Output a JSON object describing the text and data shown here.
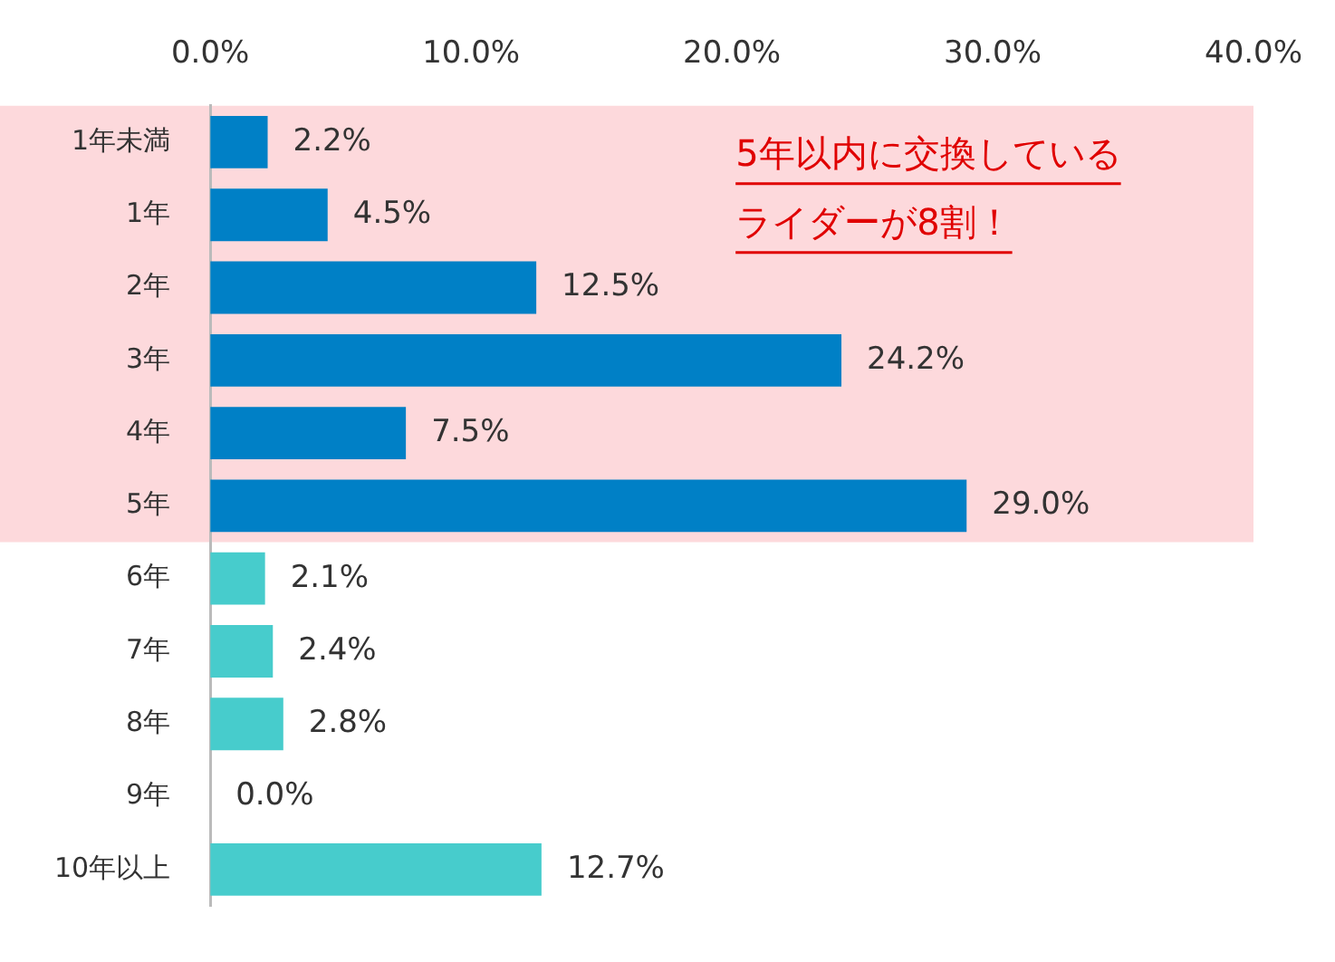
{
  "chart_data": {
    "type": "bar",
    "orientation": "horizontal",
    "categories": [
      "1年未満",
      "1年",
      "2年",
      "3年",
      "4年",
      "5年",
      "6年",
      "7年",
      "8年",
      "9年",
      "10年以上"
    ],
    "values": [
      2.2,
      4.5,
      12.5,
      24.2,
      7.5,
      29.0,
      2.1,
      2.4,
      2.8,
      0.0,
      12.7
    ],
    "colors": [
      "#0080c6",
      "#0080c6",
      "#0080c6",
      "#0080c6",
      "#0080c6",
      "#0080c6",
      "#47cccc",
      "#47cccc",
      "#47cccc",
      "#47cccc",
      "#47cccc"
    ],
    "value_labels": [
      "2.2%",
      "4.5%",
      "12.5%",
      "24.2%",
      "7.5%",
      "29.0%",
      "2.1%",
      "2.4%",
      "2.8%",
      "0.0%",
      "12.7%"
    ],
    "xlim": [
      0,
      40
    ],
    "xticks": [
      {
        "value": 0,
        "label": "0.0%"
      },
      {
        "value": 10,
        "label": "10.0%"
      },
      {
        "value": 20,
        "label": "20.0%"
      },
      {
        "value": 30,
        "label": "30.0%"
      },
      {
        "value": 40,
        "label": "40.0%"
      }
    ],
    "grid": false,
    "legend": false,
    "bands": [
      {
        "axis": "y",
        "from": "1年未満",
        "to": "5年",
        "color": "#fdd9dc"
      }
    ],
    "annotations": [
      "5年以内に交換している",
      "ライダーが8割！"
    ]
  }
}
